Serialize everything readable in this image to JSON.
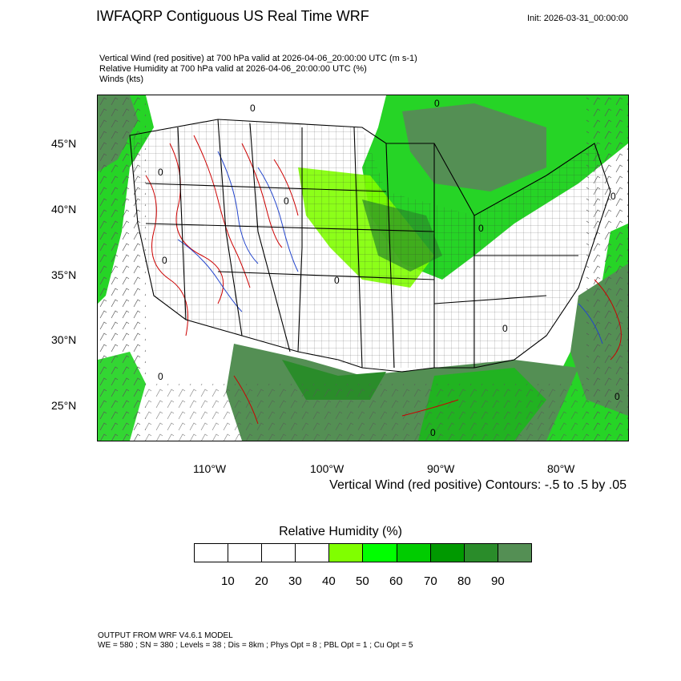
{
  "header": {
    "title": "IWFAQRP Contiguous US Real Time WRF",
    "init": "Init: 2026-03-31_00:00:00"
  },
  "descriptions": [
    "Vertical Wind (red positive) at 700 hPa valid at 2026-04-06_20:00:00 UTC   (m s-1)",
    "Relative Humidity at 700 hPa valid at 2026-04-06_20:00:00 UTC   (%)",
    "Winds   (kts)"
  ],
  "map": {
    "lat_labels": [
      "45°N",
      "40°N",
      "35°N",
      "30°N",
      "25°N"
    ],
    "lon_labels": [
      "110°W",
      "100°W",
      "90°W",
      "80°W"
    ],
    "contour_note": "Vertical Wind (red positive) Contours: -.5 to .5 by .05",
    "contour_zero_label": "0"
  },
  "legend": {
    "title": "Relative Humidity  (%)",
    "colors": [
      "#ffffff",
      "#ffffff",
      "#ffffff",
      "#ffffff",
      "#80ff00",
      "#00ff00",
      "#00cc00",
      "#009900",
      "#2a8c2a",
      "#548f54"
    ],
    "ticks": [
      "10",
      "20",
      "30",
      "40",
      "50",
      "60",
      "70",
      "80",
      "90"
    ]
  },
  "footer": {
    "line1": "OUTPUT FROM WRF V4.6.1 MODEL",
    "line2": "WE = 580 ; SN = 380 ; Levels = 38 ; Dis = 8km ; Phys Opt = 8 ; PBL Opt = 1 ; Cu Opt = 5"
  }
}
